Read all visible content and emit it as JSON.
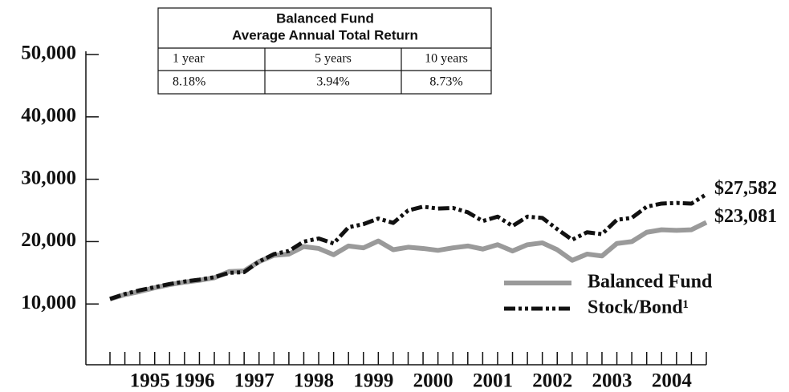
{
  "chart_data": {
    "type": "line",
    "categories": [
      null,
      null,
      null,
      "1995",
      null,
      null,
      "1996",
      null,
      null,
      null,
      "1997",
      null,
      null,
      null,
      "1998",
      null,
      null,
      null,
      "1999",
      null,
      null,
      null,
      "2000",
      null,
      null,
      null,
      "2001",
      null,
      null,
      null,
      "2002",
      null,
      null,
      null,
      "2003",
      null,
      null,
      null,
      "2004",
      null,
      null
    ],
    "series": [
      {
        "name": "Balanced Fund",
        "color": "#9a9a9a",
        "line_style": "solid",
        "values": [
          10800,
          11500,
          12000,
          12600,
          13100,
          13500,
          13800,
          14200,
          15200,
          15300,
          16800,
          17800,
          18000,
          19200,
          18900,
          17900,
          19300,
          19000,
          20100,
          18700,
          19100,
          18900,
          18600,
          19000,
          19300,
          18800,
          19500,
          18500,
          19500,
          19800,
          18700,
          17000,
          18000,
          17700,
          19700,
          20000,
          21500,
          21900,
          21800,
          21900,
          23081
        ],
        "value_labels": [
          null,
          null,
          null,
          null,
          null,
          null,
          null,
          null,
          null,
          null,
          null,
          null,
          null,
          null,
          null,
          null,
          null,
          null,
          null,
          null,
          null,
          null,
          null,
          null,
          null,
          null,
          null,
          null,
          null,
          null,
          null,
          null,
          null,
          null,
          null,
          null,
          null,
          null,
          null,
          null,
          "$23,081"
        ]
      },
      {
        "name": "Stock/Bond¹",
        "color": "#111111",
        "line_style": "dash-dot-dot",
        "values": [
          10800,
          11600,
          12200,
          12700,
          13200,
          13600,
          13900,
          14300,
          15000,
          15100,
          16800,
          18000,
          18500,
          20000,
          20500,
          19700,
          22300,
          22800,
          23700,
          23000,
          25000,
          25600,
          25300,
          25400,
          24700,
          23300,
          24000,
          22500,
          24000,
          23800,
          22000,
          20300,
          21500,
          21200,
          23500,
          23800,
          25600,
          26100,
          26200,
          26100,
          27582
        ],
        "value_labels": [
          null,
          null,
          null,
          null,
          null,
          null,
          null,
          null,
          null,
          null,
          null,
          null,
          null,
          null,
          null,
          null,
          null,
          null,
          null,
          null,
          null,
          null,
          null,
          null,
          null,
          null,
          null,
          null,
          null,
          null,
          null,
          null,
          null,
          null,
          null,
          null,
          null,
          null,
          null,
          null,
          "$27,582"
        ]
      }
    ],
    "ylim": [
      0,
      50000
    ],
    "yticks": [
      {
        "value": 10000,
        "label": "10,000"
      },
      {
        "value": 20000,
        "label": "20,000"
      },
      {
        "value": 30000,
        "label": "30,000"
      },
      {
        "value": 40000,
        "label": "40,000"
      },
      {
        "value": 50000,
        "label": "50,000"
      }
    ],
    "legend": "lower right"
  },
  "table": {
    "title": [
      "Balanced Fund",
      "Average Annual Total Return"
    ],
    "columns": [
      "1 year",
      "5 years",
      "10 years"
    ],
    "rows": [
      [
        "8.18%",
        "3.94%",
        "8.73%"
      ]
    ]
  }
}
